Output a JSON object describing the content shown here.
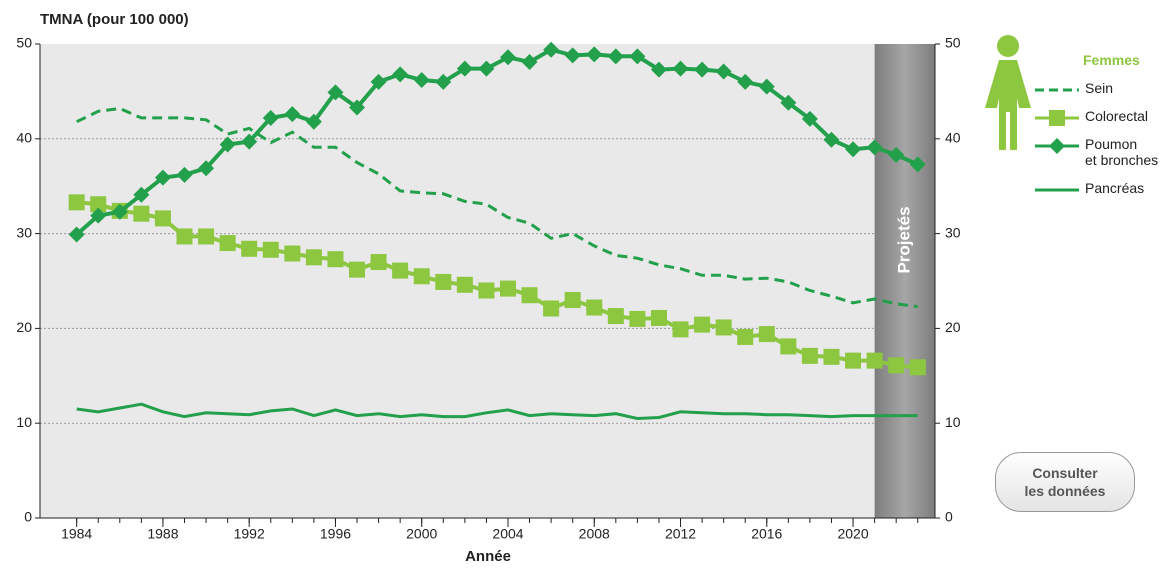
{
  "chart_data": {
    "type": "line",
    "title": "TMNA (pour 100 000)",
    "xlabel": "Année",
    "projection_label": "Projetés",
    "projection_start": 2021,
    "legend_title": "Femmes",
    "x": [
      1984,
      1985,
      1986,
      1987,
      1988,
      1989,
      1990,
      1991,
      1992,
      1993,
      1994,
      1995,
      1996,
      1997,
      1998,
      1999,
      2000,
      2001,
      2002,
      2003,
      2004,
      2005,
      2006,
      2007,
      2008,
      2009,
      2010,
      2011,
      2012,
      2013,
      2014,
      2015,
      2016,
      2017,
      2018,
      2019,
      2020,
      2021,
      2022,
      2023
    ],
    "series": [
      {
        "name": "Sein",
        "color": "#22a04b",
        "dash": true,
        "marker": "none",
        "values": [
          41.8,
          42.9,
          43.2,
          42.2,
          42.2,
          42.2,
          42.0,
          40.5,
          41.1,
          39.6,
          40.7,
          39.1,
          39.1,
          37.5,
          36.3,
          34.5,
          34.3,
          34.2,
          33.4,
          33.1,
          31.7,
          31.1,
          29.5,
          30.0,
          28.7,
          27.7,
          27.4,
          26.7,
          26.3,
          25.6,
          25.6,
          25.2,
          25.3,
          24.9,
          24.0,
          23.4,
          22.7,
          23.1,
          22.6,
          22.3
        ]
      },
      {
        "name": "Colorectal",
        "color": "#8dc63f",
        "dash": false,
        "marker": "square",
        "values": [
          33.3,
          33.1,
          32.4,
          32.1,
          31.6,
          29.7,
          29.7,
          29.0,
          28.4,
          28.3,
          27.9,
          27.5,
          27.3,
          26.2,
          27.0,
          26.1,
          25.5,
          24.9,
          24.6,
          24.0,
          24.2,
          23.5,
          22.1,
          23.0,
          22.2,
          21.3,
          21.0,
          21.1,
          19.9,
          20.4,
          20.1,
          19.1,
          19.4,
          18.1,
          17.1,
          17.0,
          16.6,
          16.6,
          16.1,
          15.9
        ]
      },
      {
        "name": "Poumon\net bronches",
        "color": "#22a04b",
        "dash": false,
        "marker": "diamond",
        "values": [
          29.9,
          31.9,
          32.3,
          34.1,
          35.9,
          36.2,
          36.9,
          39.4,
          39.7,
          42.2,
          42.6,
          41.8,
          44.9,
          43.3,
          46.0,
          46.8,
          46.2,
          46.0,
          47.4,
          47.4,
          48.6,
          48.1,
          49.4,
          48.8,
          48.9,
          48.7,
          48.7,
          47.3,
          47.4,
          47.3,
          47.1,
          46.0,
          45.5,
          43.8,
          42.1,
          39.9,
          38.9,
          39.1,
          38.3,
          37.3
        ]
      },
      {
        "name": "Pancréas",
        "color": "#22a04b",
        "dash": false,
        "marker": "none",
        "values": [
          11.5,
          11.2,
          11.6,
          12.0,
          11.2,
          10.7,
          11.1,
          11.0,
          10.9,
          11.3,
          11.5,
          10.8,
          11.4,
          10.8,
          11.0,
          10.7,
          10.9,
          10.7,
          10.7,
          11.1,
          11.4,
          10.8,
          11.0,
          10.9,
          10.8,
          11.0,
          10.5,
          10.6,
          11.2,
          11.1,
          11.0,
          11.0,
          10.9,
          10.9,
          10.8,
          10.7,
          10.8,
          10.8,
          10.8,
          10.8
        ]
      }
    ],
    "xlim": [
      1982.3,
      2023.8
    ],
    "xticks": [
      1984,
      1988,
      1992,
      1996,
      2000,
      2004,
      2008,
      2012,
      2016,
      2020
    ],
    "ylim": [
      0,
      50
    ],
    "yticks": [
      0,
      10,
      20,
      30,
      40,
      50
    ],
    "y2lim": [
      0,
      50
    ],
    "y2ticks": [
      0,
      10,
      20,
      30,
      40,
      50
    ],
    "grid": true
  },
  "button_label": "Consulter\nles données"
}
